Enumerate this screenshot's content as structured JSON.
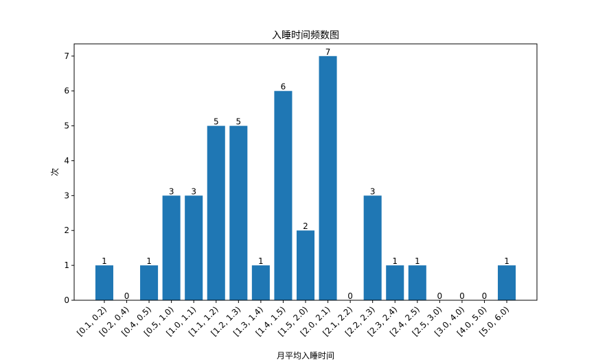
{
  "chart_data": {
    "type": "bar",
    "title": "入睡时间频数图",
    "x_label": "月平均入睡时间",
    "y_label": "次",
    "categories": [
      "[0.1, 0.2)",
      "[0.2, 0.4)",
      "[0.4, 0.5)",
      "[0.5, 1.0)",
      "[1.0, 1.1)",
      "[1.1, 1.2)",
      "[1.2, 1.3)",
      "[1.3, 1.4)",
      "[1.4, 1.5)",
      "[1.5, 2.0)",
      "[2.0, 2.1)",
      "[2.1, 2.2)",
      "[2.2, 2.3)",
      "[2.3, 2.4)",
      "[2.4, 2.5)",
      "[2.5, 3.0)",
      "[3.0, 4.0)",
      "[4.0, 5.0)",
      "[5.0, 6.0)"
    ],
    "values": [
      1,
      0,
      1,
      3,
      3,
      5,
      5,
      1,
      6,
      2,
      7,
      0,
      3,
      1,
      1,
      0,
      0,
      0,
      1
    ],
    "color": "#1f77b4",
    "ylim": [
      0,
      7.35
    ],
    "yticks": [
      0,
      1,
      2,
      3,
      4,
      5,
      6,
      7
    ],
    "grid": false
  }
}
